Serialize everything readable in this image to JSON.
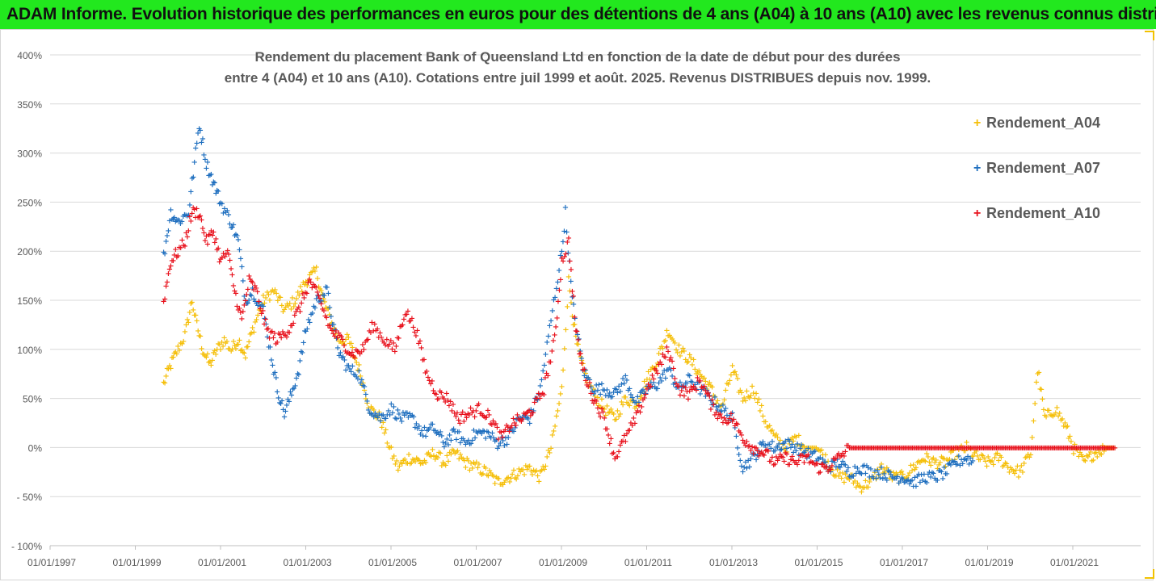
{
  "banner_title": "ADAM Informe. Evolution historique des performances en euros pour des détentions de 4 ans (A04) à 10 ans (A10) avec les revenus connus distribués",
  "colors": {
    "banner": "#22e81e",
    "A04": "#f5bf0a",
    "A07": "#1f6fbf",
    "A10": "#e8111c"
  },
  "chart_data": {
    "type": "scatter",
    "title_line1": "Rendement du placement Bank of Queensland Ltd en fonction de la date de début pour des durées",
    "title_line2": "entre 4 (A04) et 10 ans (A10). Cotations entre juil 1999 et août. 2025. Revenus DISTRIBUES depuis nov. 1999.",
    "marker": "+",
    "xlim": [
      "01/01/1997",
      "31/12/2022"
    ],
    "x_ticks": [
      "01/01/1997",
      "01/01/1999",
      "01/01/2001",
      "01/01/2003",
      "01/01/2005",
      "01/01/2007",
      "01/01/2009",
      "01/01/2011",
      "01/01/2013",
      "01/01/2015",
      "01/01/2017",
      "01/01/2019",
      "01/01/2021"
    ],
    "y_ticks": [
      "400%",
      "350%",
      "300%",
      "250%",
      "200%",
      "150%",
      "100%",
      "50%",
      "0%",
      "- 50%",
      "- 100%"
    ],
    "ylim": [
      -100,
      400
    ],
    "y_unit": "%",
    "grid": "horizontal",
    "legend_position": "right",
    "series": [
      {
        "name": "Rendement_A04",
        "color": "#f5bf0a",
        "points": [
          [
            "1999-09-01",
            65
          ],
          [
            "1999-11-01",
            85
          ],
          [
            "2000-01-01",
            100
          ],
          [
            "2000-03-01",
            115
          ],
          [
            "2000-05-01",
            150
          ],
          [
            "2000-06-01",
            130
          ],
          [
            "2000-08-01",
            100
          ],
          [
            "2000-10-01",
            85
          ],
          [
            "2000-12-01",
            100
          ],
          [
            "2001-02-01",
            110
          ],
          [
            "2001-04-01",
            100
          ],
          [
            "2001-06-01",
            110
          ],
          [
            "2001-08-01",
            95
          ],
          [
            "2001-10-01",
            120
          ],
          [
            "2002-01-01",
            150
          ],
          [
            "2002-04-01",
            160
          ],
          [
            "2002-07-01",
            140
          ],
          [
            "2002-10-01",
            150
          ],
          [
            "2003-01-01",
            170
          ],
          [
            "2003-04-01",
            180
          ],
          [
            "2003-06-01",
            150
          ],
          [
            "2003-08-01",
            130
          ],
          [
            "2003-10-01",
            110
          ],
          [
            "2004-01-01",
            110
          ],
          [
            "2004-04-01",
            80
          ],
          [
            "2004-07-01",
            40
          ],
          [
            "2004-10-01",
            30
          ],
          [
            "2005-01-01",
            -5
          ],
          [
            "2005-03-01",
            -20
          ],
          [
            "2005-06-01",
            -10
          ],
          [
            "2005-10-01",
            -15
          ],
          [
            "2006-01-01",
            -5
          ],
          [
            "2006-04-01",
            -15
          ],
          [
            "2006-07-01",
            -5
          ],
          [
            "2006-10-01",
            -15
          ],
          [
            "2007-01-01",
            -20
          ],
          [
            "2007-04-01",
            -25
          ],
          [
            "2007-07-01",
            -35
          ],
          [
            "2007-10-01",
            -30
          ],
          [
            "2008-01-01",
            -25
          ],
          [
            "2008-04-01",
            -20
          ],
          [
            "2008-07-01",
            -30
          ],
          [
            "2008-10-01",
            0
          ],
          [
            "2009-01-01",
            60
          ],
          [
            "2009-03-01",
            170
          ],
          [
            "2009-05-01",
            110
          ],
          [
            "2009-07-01",
            80
          ],
          [
            "2009-10-01",
            55
          ],
          [
            "2010-01-01",
            40
          ],
          [
            "2010-04-01",
            30
          ],
          [
            "2010-07-01",
            50
          ],
          [
            "2010-10-01",
            45
          ],
          [
            "2011-01-01",
            70
          ],
          [
            "2011-04-01",
            90
          ],
          [
            "2011-07-01",
            120
          ],
          [
            "2011-10-01",
            100
          ],
          [
            "2012-01-01",
            90
          ],
          [
            "2012-04-01",
            75
          ],
          [
            "2012-07-01",
            60
          ],
          [
            "2012-10-01",
            40
          ],
          [
            "2013-01-01",
            80
          ],
          [
            "2013-04-01",
            50
          ],
          [
            "2013-07-01",
            60
          ],
          [
            "2013-10-01",
            30
          ],
          [
            "2014-01-01",
            10
          ],
          [
            "2014-04-01",
            0
          ],
          [
            "2014-07-01",
            10
          ],
          [
            "2014-10-01",
            0
          ],
          [
            "2015-01-01",
            0
          ],
          [
            "2015-04-01",
            -15
          ],
          [
            "2015-07-01",
            -30
          ],
          [
            "2015-10-01",
            -30
          ],
          [
            "2016-01-01",
            -40
          ],
          [
            "2016-04-01",
            -35
          ],
          [
            "2016-07-01",
            -20
          ],
          [
            "2016-10-01",
            -30
          ],
          [
            "2017-01-01",
            -30
          ],
          [
            "2017-04-01",
            -20
          ],
          [
            "2017-07-01",
            -10
          ],
          [
            "2017-10-01",
            -15
          ],
          [
            "2018-01-01",
            -15
          ],
          [
            "2018-04-01",
            -5
          ],
          [
            "2018-07-01",
            0
          ],
          [
            "2018-10-01",
            -10
          ],
          [
            "2019-01-01",
            -15
          ],
          [
            "2019-04-01",
            -10
          ],
          [
            "2019-07-01",
            -20
          ],
          [
            "2019-10-01",
            -25
          ],
          [
            "2020-01-01",
            -5
          ],
          [
            "2020-03-01",
            80
          ],
          [
            "2020-05-01",
            30
          ],
          [
            "2020-08-01",
            40
          ],
          [
            "2020-11-01",
            20
          ],
          [
            "2021-01-01",
            0
          ],
          [
            "2021-04-01",
            -15
          ],
          [
            "2021-07-01",
            -5
          ],
          [
            "2021-10-01",
            0
          ],
          [
            "2022-01-01",
            0
          ]
        ]
      },
      {
        "name": "Rendement_A07",
        "color": "#1f6fbf",
        "points": [
          [
            "1999-09-01",
            195
          ],
          [
            "1999-11-01",
            240
          ],
          [
            "2000-01-01",
            230
          ],
          [
            "2000-04-01",
            240
          ],
          [
            "2000-06-01",
            300
          ],
          [
            "2000-07-01",
            330
          ],
          [
            "2000-09-01",
            290
          ],
          [
            "2000-11-01",
            270
          ],
          [
            "2001-01-01",
            250
          ],
          [
            "2001-04-01",
            230
          ],
          [
            "2001-06-01",
            210
          ],
          [
            "2001-08-01",
            150
          ],
          [
            "2001-10-01",
            160
          ],
          [
            "2002-01-01",
            140
          ],
          [
            "2002-03-01",
            100
          ],
          [
            "2002-05-01",
            60
          ],
          [
            "2002-07-01",
            35
          ],
          [
            "2002-09-01",
            55
          ],
          [
            "2002-11-01",
            80
          ],
          [
            "2003-01-01",
            120
          ],
          [
            "2003-04-01",
            150
          ],
          [
            "2003-07-01",
            160
          ],
          [
            "2003-10-01",
            100
          ],
          [
            "2004-01-01",
            80
          ],
          [
            "2004-04-01",
            75
          ],
          [
            "2004-07-01",
            40
          ],
          [
            "2004-10-01",
            30
          ],
          [
            "2005-01-01",
            40
          ],
          [
            "2005-04-01",
            30
          ],
          [
            "2005-07-01",
            30
          ],
          [
            "2005-10-01",
            15
          ],
          [
            "2006-01-01",
            20
          ],
          [
            "2006-04-01",
            5
          ],
          [
            "2006-07-01",
            15
          ],
          [
            "2006-10-01",
            5
          ],
          [
            "2007-01-01",
            15
          ],
          [
            "2007-04-01",
            15
          ],
          [
            "2007-07-01",
            5
          ],
          [
            "2007-10-01",
            10
          ],
          [
            "2008-01-01",
            30
          ],
          [
            "2008-04-01",
            30
          ],
          [
            "2008-07-01",
            60
          ],
          [
            "2008-10-01",
            130
          ],
          [
            "2009-01-01",
            200
          ],
          [
            "2009-02-01",
            240
          ],
          [
            "2009-04-01",
            150
          ],
          [
            "2009-07-01",
            80
          ],
          [
            "2009-10-01",
            60
          ],
          [
            "2010-01-01",
            60
          ],
          [
            "2010-04-01",
            55
          ],
          [
            "2010-07-01",
            70
          ],
          [
            "2010-10-01",
            45
          ],
          [
            "2011-01-01",
            60
          ],
          [
            "2011-04-01",
            65
          ],
          [
            "2011-07-01",
            80
          ],
          [
            "2011-10-01",
            60
          ],
          [
            "2012-01-01",
            70
          ],
          [
            "2012-04-01",
            60
          ],
          [
            "2012-07-01",
            50
          ],
          [
            "2012-10-01",
            40
          ],
          [
            "2013-01-01",
            30
          ],
          [
            "2013-04-01",
            -20
          ],
          [
            "2013-07-01",
            -10
          ],
          [
            "2013-10-01",
            5
          ],
          [
            "2014-01-01",
            0
          ],
          [
            "2014-04-01",
            5
          ],
          [
            "2014-07-01",
            0
          ],
          [
            "2014-10-01",
            -5
          ],
          [
            "2015-01-01",
            -10
          ],
          [
            "2015-04-01",
            -20
          ],
          [
            "2015-07-01",
            -15
          ],
          [
            "2015-10-01",
            -25
          ],
          [
            "2016-01-01",
            -20
          ],
          [
            "2016-04-01",
            -25
          ],
          [
            "2016-07-01",
            -25
          ],
          [
            "2016-10-01",
            -30
          ],
          [
            "2017-01-01",
            -30
          ],
          [
            "2017-04-01",
            -35
          ],
          [
            "2017-07-01",
            -30
          ],
          [
            "2017-10-01",
            -30
          ],
          [
            "2018-01-01",
            -25
          ],
          [
            "2018-04-01",
            -15
          ],
          [
            "2018-07-01",
            -10
          ],
          [
            "2018-09-01",
            -15
          ]
        ]
      },
      {
        "name": "Rendement_A10",
        "color": "#e8111c",
        "points": [
          [
            "1999-09-01",
            150
          ],
          [
            "1999-11-01",
            190
          ],
          [
            "2000-01-01",
            200
          ],
          [
            "2000-03-01",
            210
          ],
          [
            "2000-05-01",
            240
          ],
          [
            "2000-07-01",
            240
          ],
          [
            "2000-09-01",
            210
          ],
          [
            "2000-11-01",
            220
          ],
          [
            "2001-01-01",
            190
          ],
          [
            "2001-03-01",
            200
          ],
          [
            "2001-05-01",
            160
          ],
          [
            "2001-07-01",
            130
          ],
          [
            "2001-09-01",
            170
          ],
          [
            "2001-11-01",
            160
          ],
          [
            "2002-02-01",
            120
          ],
          [
            "2002-05-01",
            110
          ],
          [
            "2002-08-01",
            120
          ],
          [
            "2002-11-01",
            140
          ],
          [
            "2003-02-01",
            170
          ],
          [
            "2003-05-01",
            150
          ],
          [
            "2003-08-01",
            120
          ],
          [
            "2003-11-01",
            110
          ],
          [
            "2004-02-01",
            95
          ],
          [
            "2004-05-01",
            100
          ],
          [
            "2004-08-01",
            125
          ],
          [
            "2004-11-01",
            110
          ],
          [
            "2005-02-01",
            100
          ],
          [
            "2005-05-01",
            140
          ],
          [
            "2005-08-01",
            120
          ],
          [
            "2005-11-01",
            75
          ],
          [
            "2006-02-01",
            55
          ],
          [
            "2006-05-01",
            50
          ],
          [
            "2006-08-01",
            30
          ],
          [
            "2006-11-01",
            35
          ],
          [
            "2007-02-01",
            40
          ],
          [
            "2007-05-01",
            30
          ],
          [
            "2007-08-01",
            10
          ],
          [
            "2007-11-01",
            25
          ],
          [
            "2008-02-01",
            30
          ],
          [
            "2008-05-01",
            40
          ],
          [
            "2008-08-01",
            60
          ],
          [
            "2008-11-01",
            110
          ],
          [
            "2009-01-01",
            190
          ],
          [
            "2009-03-01",
            210
          ],
          [
            "2009-05-01",
            120
          ],
          [
            "2009-07-01",
            80
          ],
          [
            "2009-10-01",
            50
          ],
          [
            "2010-01-01",
            30
          ],
          [
            "2010-04-01",
            -10
          ],
          [
            "2010-07-01",
            10
          ],
          [
            "2010-10-01",
            30
          ],
          [
            "2011-01-01",
            60
          ],
          [
            "2011-04-01",
            80
          ],
          [
            "2011-07-01",
            100
          ],
          [
            "2011-10-01",
            60
          ],
          [
            "2012-01-01",
            55
          ],
          [
            "2012-04-01",
            70
          ],
          [
            "2012-07-01",
            45
          ],
          [
            "2012-10-01",
            30
          ],
          [
            "2013-01-01",
            30
          ],
          [
            "2013-04-01",
            10
          ],
          [
            "2013-07-01",
            0
          ],
          [
            "2013-10-01",
            -5
          ],
          [
            "2014-01-01",
            -15
          ],
          [
            "2014-04-01",
            -10
          ],
          [
            "2014-07-01",
            -15
          ],
          [
            "2014-10-01",
            -10
          ],
          [
            "2015-01-01",
            -20
          ],
          [
            "2015-04-01",
            -20
          ],
          [
            "2015-07-01",
            -10
          ],
          [
            "2015-10-01",
            0
          ],
          [
            "2016-07-01",
            0
          ],
          [
            "2017-07-01",
            0
          ],
          [
            "2018-07-01",
            0
          ],
          [
            "2019-07-01",
            0
          ],
          [
            "2020-07-01",
            0
          ],
          [
            "2021-07-01",
            0
          ],
          [
            "2022-01-01",
            0
          ]
        ]
      }
    ]
  }
}
